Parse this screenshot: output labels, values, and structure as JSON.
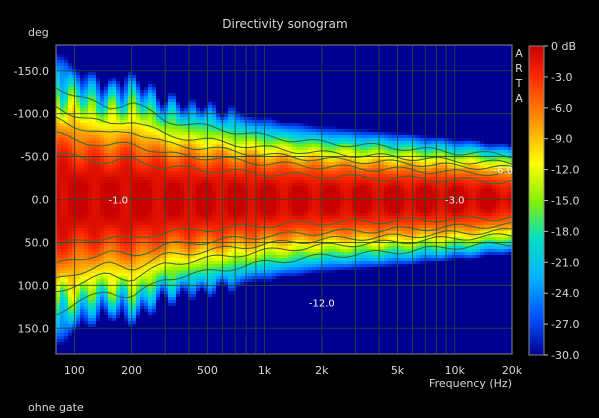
{
  "chart_data": {
    "type": "heatmap",
    "title": "Directivity sonogram",
    "ylabel": "deg",
    "xlabel": "Frequency (Hz)",
    "footer": "ohne gate",
    "watermark": "ARTA",
    "x_scale": "log",
    "xlim": [
      80,
      20000
    ],
    "ylim": [
      -180,
      180
    ],
    "x_ticks": [
      {
        "value": 100,
        "label": "100"
      },
      {
        "value": 200,
        "label": "200"
      },
      {
        "value": 500,
        "label": "500"
      },
      {
        "value": 1000,
        "label": "1k"
      },
      {
        "value": 2000,
        "label": "2k"
      },
      {
        "value": 5000,
        "label": "5k"
      },
      {
        "value": 10000,
        "label": "10k"
      },
      {
        "value": 20000,
        "label": "20k"
      }
    ],
    "y_ticks": [
      {
        "value": -150,
        "label": "-150.0"
      },
      {
        "value": -100,
        "label": "-100.0"
      },
      {
        "value": -50,
        "label": "-50.0"
      },
      {
        "value": 0,
        "label": "0.0"
      },
      {
        "value": 50,
        "label": "50.0"
      },
      {
        "value": 100,
        "label": "100.0"
      },
      {
        "value": 150,
        "label": "150.0"
      }
    ],
    "colorbar": {
      "range": [
        -30,
        0
      ],
      "unit": "dB",
      "tick_labels": [
        "0 dB",
        "-3.0",
        "-6.0",
        "-9.0",
        "-12.0",
        "-15.0",
        "-18.0",
        "-21.0",
        "-24.0",
        "-27.0",
        "-30.0"
      ]
    },
    "contour_labels": [
      {
        "text": "-1.0",
        "x": 170,
        "y": 0
      },
      {
        "text": "-3.0",
        "x": 10000,
        "y": 0
      },
      {
        "text": "-6.0",
        "x": 18000,
        "y": -35
      },
      {
        "text": "-12.0",
        "x": 2000,
        "y": 120
      }
    ],
    "beamwidth_profile": [
      {
        "freq": 80,
        "half_width_deg": 72
      },
      {
        "freq": 100,
        "half_width_deg": 66
      },
      {
        "freq": 150,
        "half_width_deg": 58
      },
      {
        "freq": 200,
        "half_width_deg": 62
      },
      {
        "freq": 300,
        "half_width_deg": 50
      },
      {
        "freq": 500,
        "half_width_deg": 46
      },
      {
        "freq": 1000,
        "half_width_deg": 40
      },
      {
        "freq": 2000,
        "half_width_deg": 36
      },
      {
        "freq": 5000,
        "half_width_deg": 33
      },
      {
        "freq": 10000,
        "half_width_deg": 30
      },
      {
        "freq": 20000,
        "half_width_deg": 28
      }
    ],
    "grid": true
  }
}
